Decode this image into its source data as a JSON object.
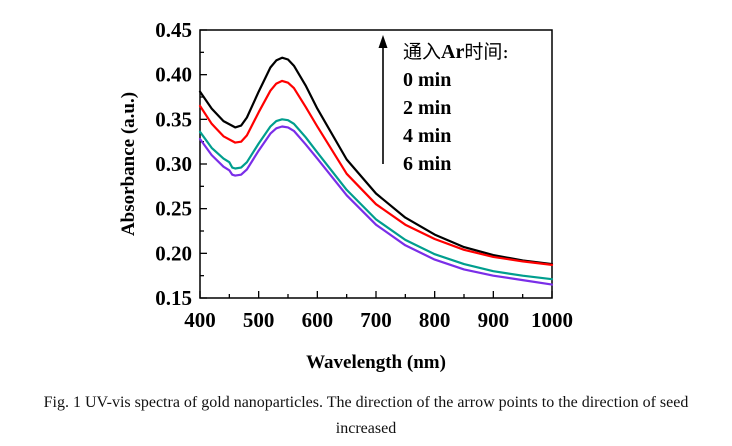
{
  "chart_data": {
    "type": "line",
    "xlabel": "Wavelength (nm)",
    "ylabel": "Absorbance (a.u.)",
    "xlim": [
      400,
      1000
    ],
    "ylim": [
      0.15,
      0.45
    ],
    "xticks": [
      400,
      500,
      600,
      700,
      800,
      900,
      1000
    ],
    "yticks": [
      0.15,
      0.2,
      0.25,
      0.3,
      0.35,
      0.4,
      0.45
    ],
    "x_tick_labels": [
      "400",
      "500",
      "600",
      "700",
      "800",
      "900",
      "1000"
    ],
    "y_tick_labels": [
      "0.15",
      "0.20",
      "0.25",
      "0.30",
      "0.35",
      "0.40",
      "0.45"
    ],
    "grid": false,
    "legend": {
      "placement": "top-right",
      "title_prefix": "通入",
      "title_bold": "Ar",
      "title_suffix": "时间:",
      "arrow_direction": "up",
      "entries": [
        "0 min",
        "2 min",
        "4 min",
        "6 min"
      ]
    },
    "series": [
      {
        "name": "0 min",
        "color": "#000000",
        "x": [
          400,
          420,
          440,
          460,
          470,
          480,
          500,
          520,
          530,
          540,
          550,
          560,
          580,
          600,
          650,
          700,
          750,
          800,
          850,
          900,
          950,
          1000
        ],
        "y": [
          0.381,
          0.362,
          0.348,
          0.341,
          0.343,
          0.352,
          0.381,
          0.408,
          0.416,
          0.419,
          0.417,
          0.41,
          0.388,
          0.362,
          0.305,
          0.267,
          0.24,
          0.221,
          0.207,
          0.198,
          0.192,
          0.188
        ]
      },
      {
        "name": "2 min",
        "color": "#ff0000",
        "x": [
          400,
          420,
          440,
          460,
          470,
          480,
          500,
          520,
          530,
          540,
          550,
          560,
          580,
          600,
          650,
          700,
          750,
          800,
          850,
          900,
          950,
          1000
        ],
        "y": [
          0.365,
          0.345,
          0.331,
          0.324,
          0.325,
          0.332,
          0.358,
          0.382,
          0.39,
          0.393,
          0.391,
          0.385,
          0.364,
          0.342,
          0.289,
          0.255,
          0.232,
          0.216,
          0.204,
          0.196,
          0.191,
          0.187
        ]
      },
      {
        "name": "4 min",
        "color": "#009e8e",
        "x": [
          400,
          420,
          440,
          450,
          455,
          460,
          470,
          480,
          500,
          520,
          530,
          540,
          550,
          560,
          580,
          600,
          650,
          700,
          750,
          800,
          850,
          900,
          950,
          1000
        ],
        "y": [
          0.336,
          0.318,
          0.306,
          0.302,
          0.296,
          0.295,
          0.296,
          0.302,
          0.323,
          0.342,
          0.348,
          0.35,
          0.349,
          0.345,
          0.33,
          0.313,
          0.271,
          0.238,
          0.215,
          0.199,
          0.188,
          0.18,
          0.175,
          0.171
        ]
      },
      {
        "name": "6 min",
        "color": "#7a2ee8",
        "x": [
          400,
          420,
          440,
          450,
          455,
          460,
          470,
          480,
          500,
          520,
          530,
          540,
          550,
          560,
          580,
          600,
          650,
          700,
          750,
          800,
          850,
          900,
          950,
          1000
        ],
        "y": [
          0.328,
          0.31,
          0.297,
          0.293,
          0.288,
          0.287,
          0.288,
          0.294,
          0.315,
          0.334,
          0.34,
          0.342,
          0.341,
          0.337,
          0.322,
          0.306,
          0.265,
          0.232,
          0.209,
          0.193,
          0.182,
          0.175,
          0.17,
          0.165
        ]
      }
    ]
  },
  "caption": {
    "line1": "Fig. 1 UV-vis spectra of gold nanoparticles. The direction of the arrow points to the direction of seed",
    "line2": "increased"
  }
}
